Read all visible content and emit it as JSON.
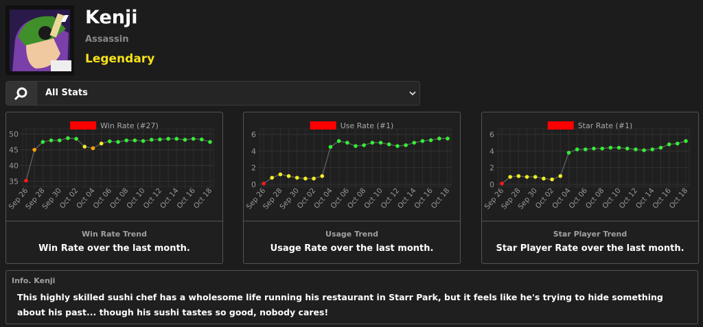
{
  "header": {
    "name": "Kenji",
    "class": "Assassin",
    "rarity": "Legendary"
  },
  "filter": {
    "label": "All Stats"
  },
  "chart_data": [
    {
      "type": "line",
      "title": "Win Rate Trend",
      "subtitle": "Win Rate over the last month.",
      "categories": [
        "Sep 26",
        null,
        "Sep 28",
        null,
        "Sep 30",
        null,
        "Oct 02",
        null,
        "Oct 04",
        null,
        "Oct 06",
        null,
        "Oct 08",
        null,
        "Oct 10",
        null,
        "Oct 12",
        null,
        "Oct 14",
        null,
        "Oct 16",
        null,
        "Oct 18"
      ],
      "series": [
        {
          "name": "Win Rate (#27)",
          "color": "#ff0000",
          "values": [
            35.2,
            45,
            47.5,
            48,
            48,
            48.7,
            48.5,
            46,
            45.5,
            47,
            47.7,
            47.5,
            48,
            48,
            47.8,
            48.2,
            48.3,
            48.5,
            48.5,
            48.2,
            48.5,
            48.3,
            47.5
          ],
          "point_colors": [
            "#ff1a1a",
            "#ffa500",
            "#33ee33",
            "#33ee33",
            "#33ee33",
            "#33ee33",
            "#33ee33",
            "#f2ee22",
            "#ffa500",
            "#f2ee22",
            "#33ee33",
            "#33ee33",
            "#33ee33",
            "#33ee33",
            "#33ee33",
            "#33ee33",
            "#33ee33",
            "#33ee33",
            "#33ee33",
            "#33ee33",
            "#33ee33",
            "#33ee33",
            "#33ee33"
          ]
        }
      ],
      "ylim": [
        34,
        51
      ],
      "yticks": [
        35,
        40,
        45,
        50
      ],
      "line_color": "#5a5a5a",
      "grid": true
    },
    {
      "type": "line",
      "title": "Usage Trend",
      "subtitle": "Usage Rate over the last month.",
      "categories": [
        "Sep 26",
        null,
        "Sep 28",
        null,
        "Sep 30",
        null,
        "Oct 02",
        null,
        "Oct 04",
        null,
        "Oct 06",
        null,
        "Oct 08",
        null,
        "Oct 10",
        null,
        "Oct 12",
        null,
        "Oct 14",
        null,
        "Oct 16",
        null,
        "Oct 18"
      ],
      "series": [
        {
          "name": "Use Rate (#1)",
          "color": "#ff0000",
          "values": [
            0.1,
            0.8,
            1.2,
            1.0,
            0.8,
            0.7,
            0.7,
            1.0,
            4.5,
            5.2,
            5.0,
            4.6,
            4.7,
            5.0,
            5.0,
            4.8,
            4.6,
            4.7,
            5.0,
            5.2,
            5.3,
            5.5,
            5.5
          ],
          "point_colors": [
            "#ff1a1a",
            "#f2ee22",
            "#f2ee22",
            "#f2ee22",
            "#f2ee22",
            "#f2ee22",
            "#f2ee22",
            "#f2ee22",
            "#33ee33",
            "#33ee33",
            "#33ee33",
            "#33ee33",
            "#33ee33",
            "#33ee33",
            "#33ee33",
            "#33ee33",
            "#33ee33",
            "#33ee33",
            "#33ee33",
            "#33ee33",
            "#33ee33",
            "#33ee33",
            "#33ee33"
          ]
        }
      ],
      "ylim": [
        0,
        6
      ],
      "yticks": [
        0,
        2,
        4,
        6
      ],
      "line_color": "#5a5a5a",
      "grid": true
    },
    {
      "type": "line",
      "title": "Star Player Trend",
      "subtitle": "Star Player Rate over the last month.",
      "categories": [
        "Sep 26",
        null,
        "Sep 28",
        null,
        "Sep 30",
        null,
        "Oct 02",
        null,
        "Oct 04",
        null,
        "Oct 06",
        null,
        "Oct 08",
        null,
        "Oct 10",
        null,
        "Oct 12",
        null,
        "Oct 14",
        null,
        "Oct 16",
        null,
        "Oct 18"
      ],
      "series": [
        {
          "name": "Star Rate (#1)",
          "color": "#ff0000",
          "values": [
            0.1,
            0.9,
            1.0,
            0.9,
            0.9,
            0.7,
            0.6,
            1.0,
            3.8,
            4.2,
            4.2,
            4.3,
            4.3,
            4.4,
            4.4,
            4.3,
            4.2,
            4.1,
            4.2,
            4.4,
            4.8,
            4.9,
            5.2
          ],
          "point_colors": [
            "#ff1a1a",
            "#f2ee22",
            "#f2ee22",
            "#f2ee22",
            "#f2ee22",
            "#f2ee22",
            "#f2ee22",
            "#f2ee22",
            "#33ee33",
            "#33ee33",
            "#33ee33",
            "#33ee33",
            "#33ee33",
            "#33ee33",
            "#33ee33",
            "#33ee33",
            "#33ee33",
            "#33ee33",
            "#33ee33",
            "#33ee33",
            "#33ee33",
            "#33ee33",
            "#33ee33"
          ]
        }
      ],
      "ylim": [
        0,
        6
      ],
      "yticks": [
        0,
        2,
        4,
        6
      ],
      "line_color": "#5a5a5a",
      "grid": true
    }
  ],
  "info": {
    "title": "Info. Kenji",
    "text": "This highly skilled sushi chef has a wholesome life running his restaurant in Starr Park, but it feels like he's trying to hide something about his past... though his sushi tastes so good, nobody cares!"
  }
}
